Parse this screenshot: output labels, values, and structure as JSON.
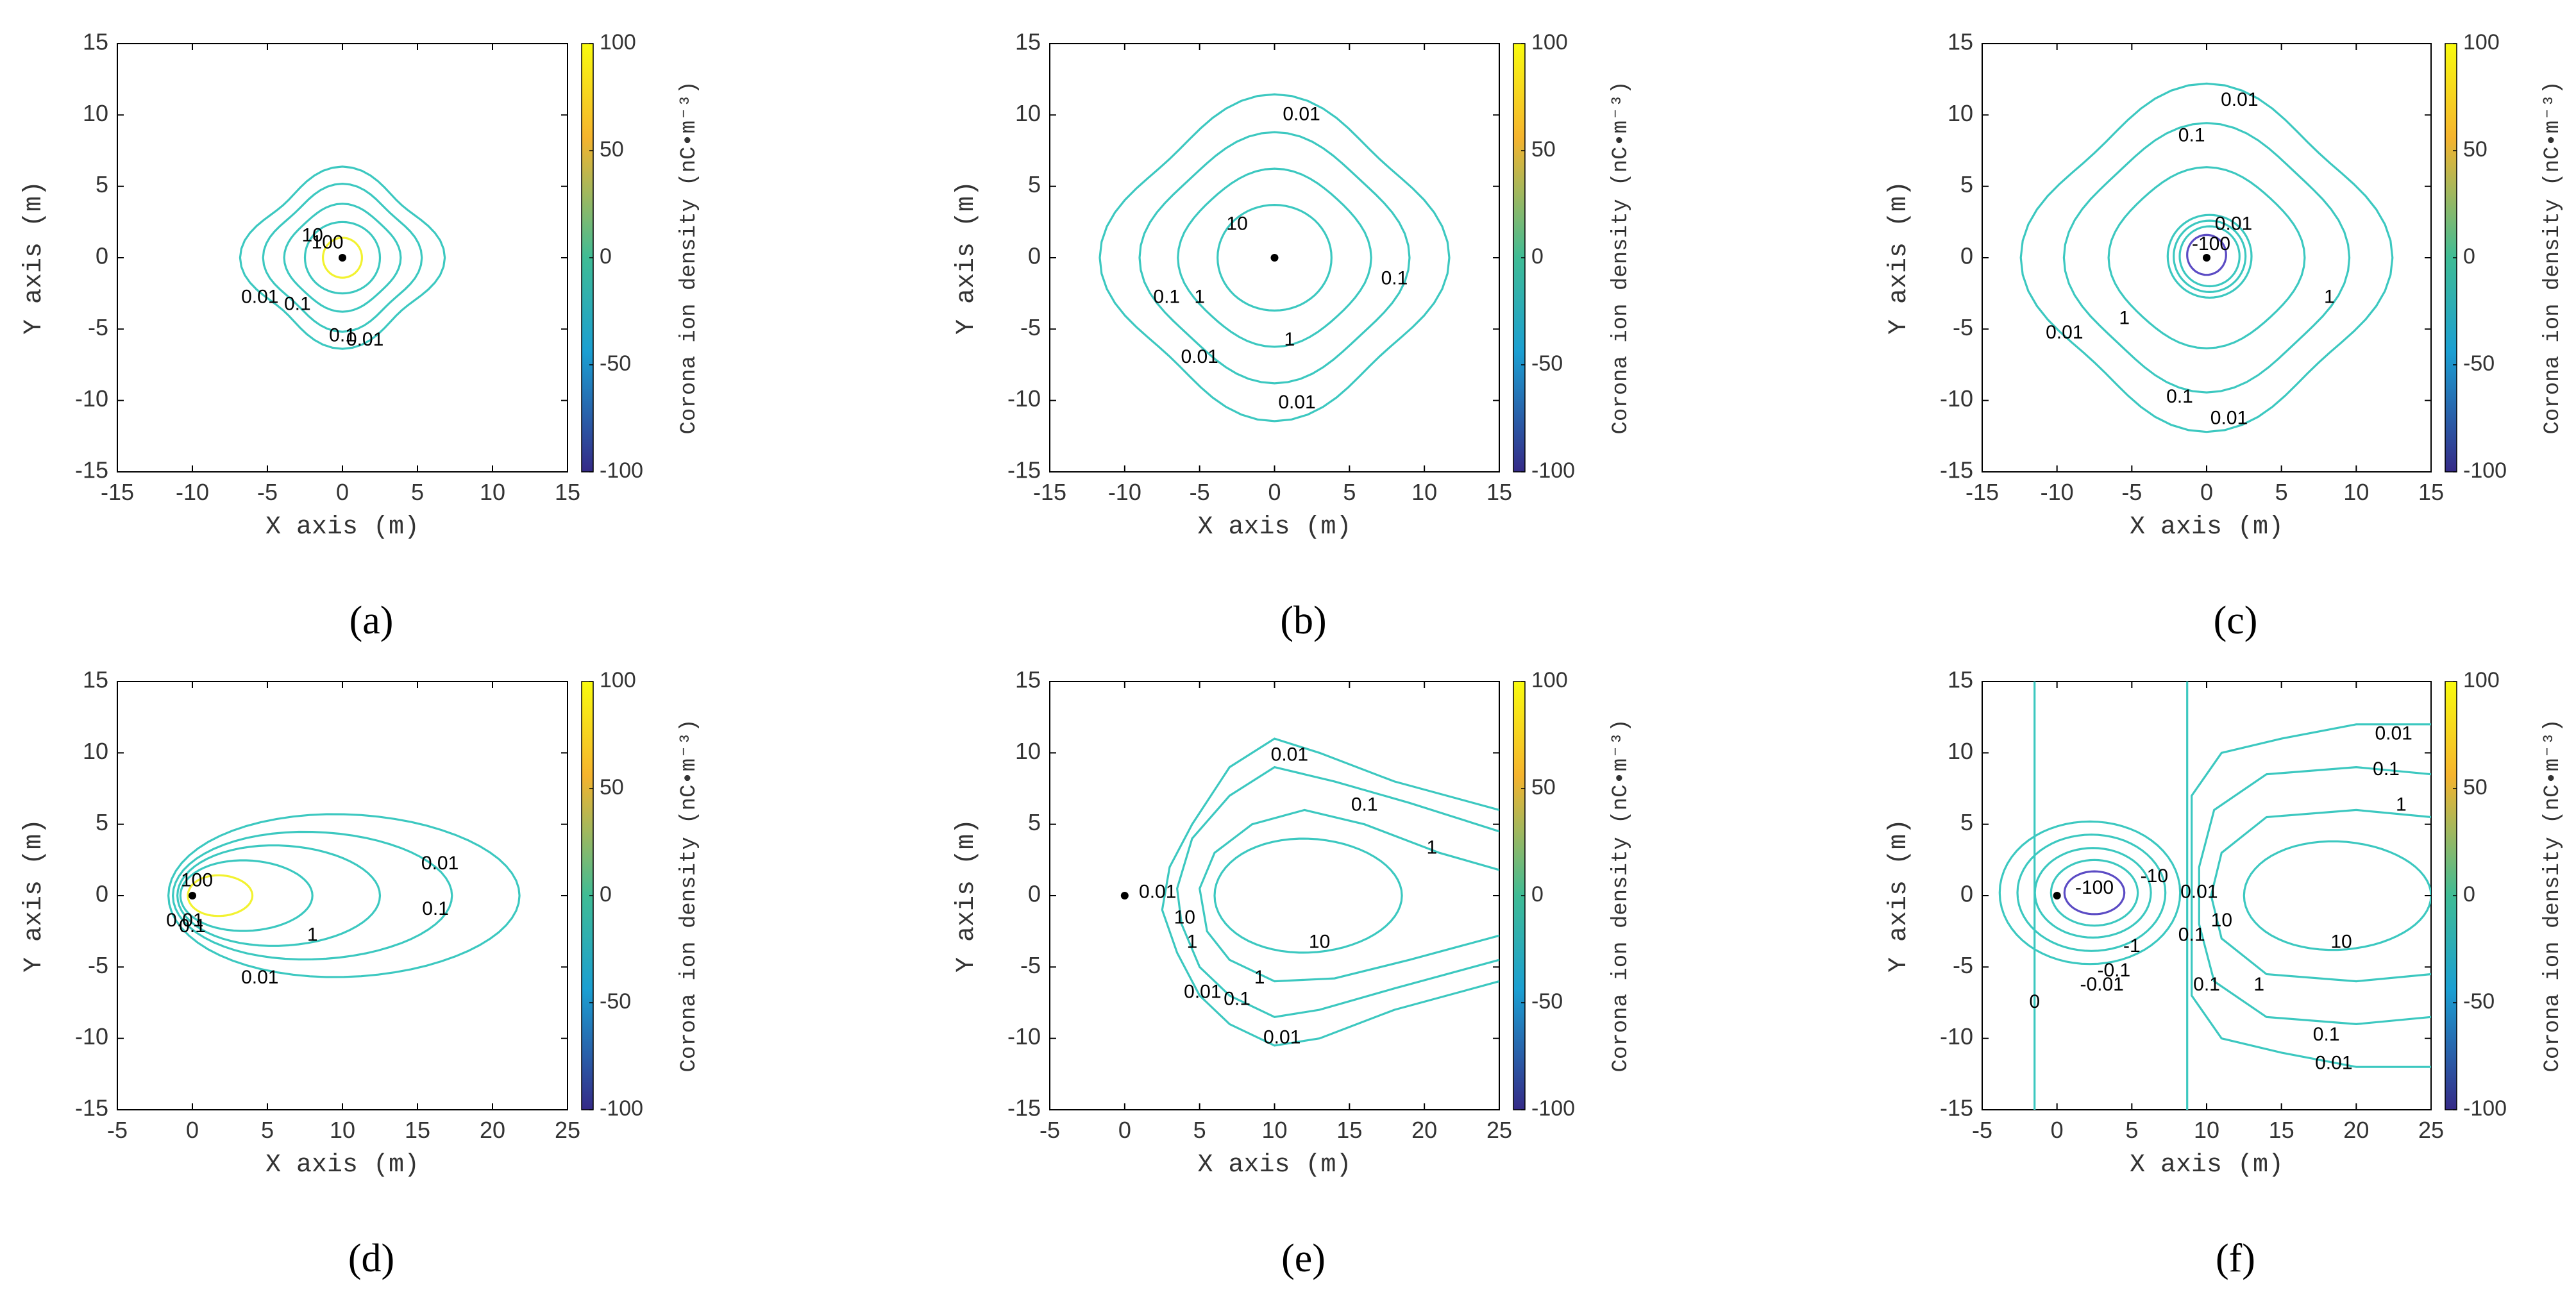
{
  "figure": {
    "colorbar_label": "Corona ion density (nC•m⁻³)",
    "colorbar_ticks": [
      "100",
      "50",
      "0",
      "-50",
      "-100"
    ],
    "colorbar_colors": [
      "#f9fb0e",
      "#f5b42e",
      "#3fbc95",
      "#1b9fd2",
      "#3f2cb4",
      "#352a87"
    ],
    "contour_color": "#3cc8c0",
    "neg_contour_color": "#5b4bc4",
    "pos_core_color": "#f2f230",
    "panel_labels": [
      "(a)",
      "(b)",
      "(c)",
      "(d)",
      "(e)",
      "(f)"
    ]
  },
  "chart_data": [
    {
      "panel": "(a)",
      "type": "contour",
      "xlabel": "X axis (m)",
      "ylabel": "Y axis (m)",
      "xlim": [
        -15,
        15
      ],
      "ylim": [
        -15,
        15
      ],
      "xticks": [
        "-15",
        "-10",
        "-5",
        "0",
        "5",
        "10",
        "15"
      ],
      "yticks": [
        "15",
        "10",
        "5",
        "0",
        "-5",
        "-10",
        "-15"
      ],
      "source_point": [
        0,
        0
      ],
      "contour_labels": [
        {
          "text": "10",
          "at": [
            -2.0,
            1.5
          ]
        },
        {
          "text": "100",
          "at": [
            -1.0,
            1.0
          ]
        },
        {
          "text": "0.01",
          "at": [
            -5.5,
            -2.8
          ]
        },
        {
          "text": "0.1",
          "at": [
            -3.0,
            -3.3
          ]
        },
        {
          "text": "0.1",
          "at": [
            0.0,
            -5.5
          ]
        },
        {
          "text": "0.01",
          "at": [
            1.5,
            -5.8
          ]
        }
      ]
    },
    {
      "panel": "(b)",
      "type": "contour",
      "xlabel": "X axis (m)",
      "ylabel": "Y axis (m)",
      "xlim": [
        -15,
        15
      ],
      "ylim": [
        -15,
        15
      ],
      "xticks": [
        "-15",
        "-10",
        "-5",
        "0",
        "5",
        "10",
        "15"
      ],
      "yticks": [
        "15",
        "10",
        "5",
        "0",
        "-5",
        "-10",
        "-15"
      ],
      "source_point": [
        0,
        0
      ],
      "contour_labels": [
        {
          "text": "0.01",
          "at": [
            1.8,
            10.0
          ]
        },
        {
          "text": "10",
          "at": [
            -2.5,
            2.3
          ]
        },
        {
          "text": "0.1",
          "at": [
            8.0,
            -1.5
          ]
        },
        {
          "text": "0.1",
          "at": [
            -7.2,
            -2.8
          ]
        },
        {
          "text": "1",
          "at": [
            -5.0,
            -2.8
          ]
        },
        {
          "text": "1",
          "at": [
            1.0,
            -5.8
          ]
        },
        {
          "text": "0.01",
          "at": [
            -5.0,
            -7.0
          ]
        },
        {
          "text": "0.01",
          "at": [
            1.5,
            -10.2
          ]
        }
      ]
    },
    {
      "panel": "(c)",
      "type": "contour",
      "xlabel": "X axis (m)",
      "ylabel": "Y axis (m)",
      "xlim": [
        -15,
        15
      ],
      "ylim": [
        -15,
        15
      ],
      "xticks": [
        "-15",
        "-10",
        "-5",
        "0",
        "5",
        "10",
        "15"
      ],
      "yticks": [
        "15",
        "10",
        "5",
        "0",
        "-5",
        "-10",
        "-15"
      ],
      "source_point": [
        0,
        0
      ],
      "contour_labels": [
        {
          "text": "0.01",
          "at": [
            2.2,
            11.0
          ]
        },
        {
          "text": "0.1",
          "at": [
            -1.0,
            8.5
          ]
        },
        {
          "text": "-100",
          "at": [
            0.3,
            0.9
          ]
        },
        {
          "text": "0.01",
          "at": [
            1.8,
            2.3
          ]
        },
        {
          "text": "1",
          "at": [
            8.2,
            -2.8
          ]
        },
        {
          "text": "1",
          "at": [
            -5.5,
            -4.3
          ]
        },
        {
          "text": "0.01",
          "at": [
            -9.5,
            -5.3
          ]
        },
        {
          "text": "0.1",
          "at": [
            -1.8,
            -9.8
          ]
        },
        {
          "text": "0.01",
          "at": [
            1.5,
            -11.3
          ]
        }
      ]
    },
    {
      "panel": "(d)",
      "type": "contour",
      "xlabel": "X axis (m)",
      "ylabel": "Y axis (m)",
      "xlim": [
        -5,
        25
      ],
      "ylim": [
        -15,
        15
      ],
      "xticks": [
        "-5",
        "0",
        "5",
        "10",
        "15",
        "20",
        "25"
      ],
      "yticks": [
        "15",
        "10",
        "5",
        "0",
        "-5",
        "-10",
        "-15"
      ],
      "source_point": [
        0,
        0
      ],
      "contour_labels": [
        {
          "text": "100",
          "at": [
            0.3,
            1.0
          ]
        },
        {
          "text": "0.01",
          "at": [
            16.5,
            2.2
          ]
        },
        {
          "text": "0.01",
          "at": [
            -0.5,
            -1.8
          ]
        },
        {
          "text": "0.1",
          "at": [
            0.0,
            -2.2
          ]
        },
        {
          "text": "1",
          "at": [
            8.0,
            -2.8
          ]
        },
        {
          "text": "0.1",
          "at": [
            16.2,
            -1.0
          ]
        },
        {
          "text": "0.01",
          "at": [
            4.5,
            -5.8
          ]
        }
      ]
    },
    {
      "panel": "(e)",
      "type": "contour",
      "xlabel": "X axis (m)",
      "ylabel": "Y axis (m)",
      "xlim": [
        -5,
        25
      ],
      "ylim": [
        -15,
        15
      ],
      "xticks": [
        "-5",
        "0",
        "5",
        "10",
        "15",
        "20",
        "25"
      ],
      "yticks": [
        "15",
        "10",
        "5",
        "0",
        "-5",
        "-10",
        "-15"
      ],
      "source_point": [
        0,
        0
      ],
      "contour_labels": [
        {
          "text": "0.01",
          "at": [
            11.0,
            9.8
          ]
        },
        {
          "text": "0.1",
          "at": [
            16.0,
            6.3
          ]
        },
        {
          "text": "1",
          "at": [
            20.5,
            3.3
          ]
        },
        {
          "text": "0.01",
          "at": [
            2.2,
            0.2
          ]
        },
        {
          "text": "10",
          "at": [
            4.0,
            -1.6
          ]
        },
        {
          "text": "10",
          "at": [
            13.0,
            -3.3
          ]
        },
        {
          "text": "1",
          "at": [
            4.5,
            -3.3
          ]
        },
        {
          "text": "1",
          "at": [
            9.0,
            -5.8
          ]
        },
        {
          "text": "0.01",
          "at": [
            5.2,
            -6.8
          ]
        },
        {
          "text": "0.1",
          "at": [
            7.5,
            -7.3
          ]
        },
        {
          "text": "0.01",
          "at": [
            10.5,
            -10.0
          ]
        }
      ]
    },
    {
      "panel": "(f)",
      "type": "contour",
      "xlabel": "X axis (m)",
      "ylabel": "Y axis (m)",
      "xlim": [
        -5,
        25
      ],
      "ylim": [
        -15,
        15
      ],
      "xticks": [
        "-5",
        "0",
        "5",
        "10",
        "15",
        "20",
        "25"
      ],
      "yticks": [
        "15",
        "10",
        "5",
        "0",
        "-5",
        "-10",
        "-15"
      ],
      "source_point": [
        0,
        0
      ],
      "contour_labels": [
        {
          "text": "0.01",
          "at": [
            22.5,
            11.3
          ]
        },
        {
          "text": "0.1",
          "at": [
            22.0,
            8.8
          ]
        },
        {
          "text": "1",
          "at": [
            23.0,
            6.3
          ]
        },
        {
          "text": "-10",
          "at": [
            6.5,
            1.3
          ]
        },
        {
          "text": "-100",
          "at": [
            2.5,
            0.5
          ]
        },
        {
          "text": "0.01",
          "at": [
            9.5,
            0.2
          ]
        },
        {
          "text": "10",
          "at": [
            11.0,
            -1.8
          ]
        },
        {
          "text": "10",
          "at": [
            19.0,
            -3.3
          ]
        },
        {
          "text": "-1",
          "at": [
            5.0,
            -3.6
          ]
        },
        {
          "text": "0.1",
          "at": [
            9.0,
            -2.8
          ]
        },
        {
          "text": "-0.1",
          "at": [
            3.8,
            -5.3
          ]
        },
        {
          "text": "-0.01",
          "at": [
            3.0,
            -6.3
          ]
        },
        {
          "text": "1",
          "at": [
            13.5,
            -6.3
          ]
        },
        {
          "text": "0.1",
          "at": [
            10.0,
            -6.3
          ]
        },
        {
          "text": "0",
          "at": [
            -1.5,
            -7.5
          ]
        },
        {
          "text": "0.1",
          "at": [
            18.0,
            -9.8
          ]
        },
        {
          "text": "0.01",
          "at": [
            18.5,
            -11.8
          ]
        }
      ]
    }
  ]
}
